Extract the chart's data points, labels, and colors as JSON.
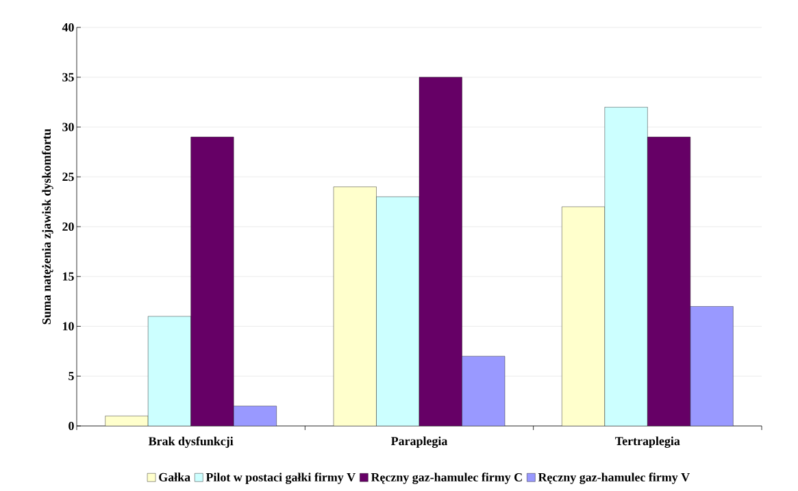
{
  "chart_data": {
    "type": "bar",
    "ylabel": "Suma natężenia zjawisk dyskomfortu",
    "categories": [
      "Brak dysfunkcji",
      "Paraplegia",
      "Tertraplegia"
    ],
    "series": [
      {
        "name": "Gałka",
        "color": "#ffffcc",
        "values": [
          1,
          24,
          22
        ]
      },
      {
        "name": "Pilot w postaci gałki firmy V",
        "color": "#ccffff",
        "values": [
          11,
          23,
          32
        ]
      },
      {
        "name": "Ręczny gaz-hamulec firmy C",
        "color": "#660066",
        "values": [
          29,
          35,
          29
        ]
      },
      {
        "name": "Ręczny gaz-hamulec firmy V",
        "color": "#9999ff",
        "values": [
          2,
          7,
          12
        ]
      }
    ],
    "ylim": [
      0,
      40
    ],
    "yticks": [
      0,
      5,
      10,
      15,
      20,
      25,
      30,
      35,
      40
    ],
    "grid": "y",
    "legend": "bottom"
  }
}
